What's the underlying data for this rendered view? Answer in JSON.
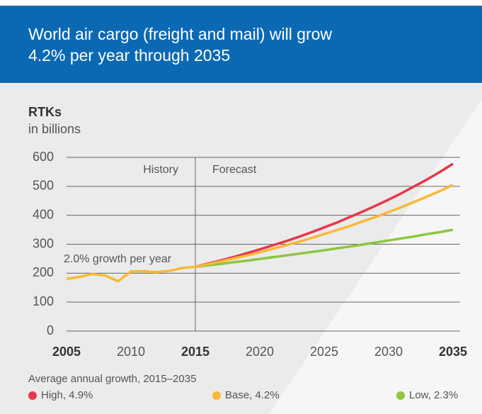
{
  "chart_data": {
    "type": "line",
    "title": [
      "World air cargo (freight and mail) will grow",
      "4.2% per year through 2035"
    ],
    "y_label": "RTKs",
    "y_sublabel": "in billions",
    "annotations": {
      "history": "History",
      "forecast": "Forecast",
      "growth": "2.0% growth per year"
    },
    "divider_x": 2015,
    "legend_title": "Average annual growth, 2015–2035",
    "x": [
      2005,
      2006,
      2007,
      2008,
      2009,
      2010,
      2011,
      2012,
      2013,
      2014,
      2015,
      2016,
      2017,
      2018,
      2019,
      2020,
      2021,
      2022,
      2023,
      2024,
      2025,
      2026,
      2027,
      2028,
      2029,
      2030,
      2031,
      2032,
      2033,
      2034,
      2035
    ],
    "series": [
      {
        "name": "High, 4.9%",
        "color": "#e8374b",
        "values": [
          null,
          null,
          null,
          null,
          null,
          null,
          null,
          null,
          null,
          null,
          222,
          233,
          244,
          256,
          269,
          282,
          296,
          310,
          325,
          341,
          358,
          375,
          394,
          413,
          433,
          454,
          476,
          500,
          524,
          550,
          578
        ]
      },
      {
        "name": "Base, 4.2%",
        "color": "#f9b935",
        "values": [
          180,
          187,
          197,
          192,
          172,
          206,
          207,
          204,
          208,
          218,
          222,
          231,
          241,
          251,
          261,
          272,
          284,
          296,
          308,
          321,
          335,
          349,
          363,
          379,
          394,
          411,
          428,
          446,
          465,
          484,
          505
        ]
      },
      {
        "name": "Low, 2.3%",
        "color": "#8dc63f",
        "values": [
          null,
          null,
          null,
          null,
          null,
          null,
          null,
          null,
          null,
          null,
          222,
          227,
          232,
          238,
          243,
          249,
          255,
          261,
          267,
          273,
          279,
          286,
          292,
          299,
          306,
          313,
          320,
          327,
          335,
          342,
          350
        ]
      }
    ],
    "xlim": [
      2005,
      2035
    ],
    "xticks": [
      2005,
      2010,
      2015,
      2020,
      2025,
      2030,
      2035
    ],
    "emphasized_xticks": [
      2005,
      2015,
      2035
    ],
    "ylim": [
      0,
      600
    ],
    "yticks": [
      0,
      100,
      200,
      300,
      400,
      500,
      600
    ],
    "grid": true
  }
}
